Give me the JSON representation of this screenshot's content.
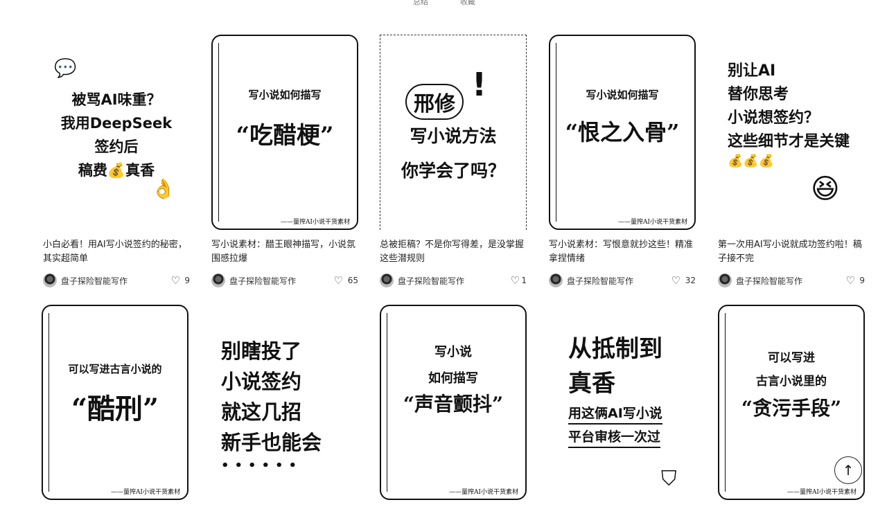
{
  "top_strip": {
    "items": [
      "总结",
      "收藏"
    ]
  },
  "cover_footer": "——量搾AI小说干货素材",
  "cards": [
    {
      "title": "小白必看！用AI写小说签约的秘密，其实超简单",
      "author": "盘子探险智能写作",
      "likes": "9",
      "cover": [
        "被骂AI味重？",
        "我用DeepSeek",
        "签约后",
        "稿费💰真香"
      ]
    },
    {
      "title": "写小说素材：醋王眼神描写，小说氛围感拉爆",
      "author": "盘子探险智能写作",
      "likes": "65",
      "cover": [
        "写小说如何描写",
        "“吃醋梗”"
      ]
    },
    {
      "title": "总被拒稿？不是你写得差，是没掌握这些潜规则",
      "author": "盘子探险智能写作",
      "likes": "1",
      "cover": [
        "邢修",
        "写小说方法",
        "你学会了吗？"
      ]
    },
    {
      "title": "写小说素材：写恨意就抄这些！精准拿捏情绪",
      "author": "盘子探险智能写作",
      "likes": "32",
      "cover": [
        "写小说如何描写",
        "“恨之入骨”"
      ]
    },
    {
      "title": "第一次用AI写小说就成功签约啦！稿子接不完",
      "author": "盘子探险智能写作",
      "likes": "9",
      "cover": [
        "别让AI",
        "替你思考",
        "小说想签约？",
        "这些细节才是关键",
        "💰💰💰"
      ]
    },
    {
      "cover": [
        "可以写进古言小说的",
        "“酷刑”"
      ]
    },
    {
      "cover": [
        "别瞎投了",
        "小说签约",
        "就这几招",
        "新手也能会",
        "••••••"
      ]
    },
    {
      "cover": [
        "写小说",
        "如何描写",
        "“声音颤抖”"
      ]
    },
    {
      "cover": [
        "从抵制到",
        "真香",
        "用这俩AI写小说",
        "平台审核一次过"
      ]
    },
    {
      "cover": [
        "可以写进",
        "古言小说里的",
        "“贪污手段”"
      ]
    }
  ],
  "back_to_top": "↑",
  "icons": {
    "heart": "heart-icon",
    "back_top": "arrow-up-icon"
  }
}
